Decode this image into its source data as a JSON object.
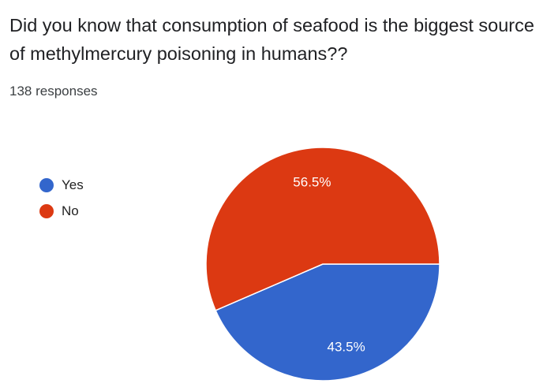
{
  "question": "Did you know that consumption of seafood is the biggest source of methylmercury poisoning in humans??",
  "responses": "138 responses",
  "colors": {
    "Yes": "#3366cc",
    "No": "#dc3912"
  },
  "chart_data": {
    "type": "pie",
    "legend_position": "left",
    "slices": [
      {
        "label": "Yes",
        "value": 43.5,
        "display": "43.5%"
      },
      {
        "label": "No",
        "value": 56.5,
        "display": "56.5%"
      }
    ]
  }
}
